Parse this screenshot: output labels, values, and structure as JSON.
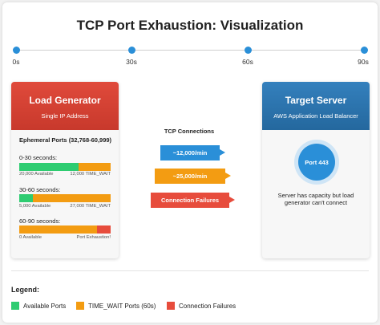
{
  "title": "TCP Port Exhaustion: Visualization",
  "timeline": [
    "0s",
    "30s",
    "60s",
    "90s"
  ],
  "colors": {
    "available": "#2ecc71",
    "time_wait": "#f39c12",
    "failure": "#e74c3c",
    "accent": "#2a8fd8"
  },
  "load_generator": {
    "title": "Load Generator",
    "subtitle": "Single IP Address",
    "ports_title": "Ephemeral Ports (32,768-60,999)",
    "slots": [
      {
        "label": "0-30 seconds:",
        "available_fraction": 0.65,
        "time_wait_fraction": 0.35,
        "failure_fraction": 0,
        "left_caption": "20,000 Available",
        "right_caption": "12,000 TIME_WAIT"
      },
      {
        "label": "30-60 seconds:",
        "available_fraction": 0.15,
        "time_wait_fraction": 0.85,
        "failure_fraction": 0,
        "left_caption": "5,000 Available",
        "right_caption": "27,000 TIME_WAIT"
      },
      {
        "label": "60-90 seconds:",
        "available_fraction": 0,
        "time_wait_fraction": 0.85,
        "failure_fraction": 0.15,
        "left_caption": "0 Available",
        "right_caption": "Port Exhaustion!"
      }
    ]
  },
  "connections": {
    "title": "TCP Connections",
    "arrows": [
      {
        "label": "~12,000/min",
        "color": "#2a8fd8"
      },
      {
        "label": "~25,000/min",
        "color": "#f39c12"
      },
      {
        "label": "Connection Failures",
        "color": "#e74c3c"
      }
    ]
  },
  "target_server": {
    "title": "Target Server",
    "subtitle": "AWS Application Load Balancer",
    "port": "Port 443",
    "description": "Server has capacity but load generator can't connect"
  },
  "legend": {
    "title": "Legend:",
    "items": [
      {
        "label": "Available Ports",
        "color": "#2ecc71"
      },
      {
        "label": "TIME_WAIT Ports (60s)",
        "color": "#f39c12"
      },
      {
        "label": "Connection Failures",
        "color": "#e74c3c"
      }
    ]
  }
}
